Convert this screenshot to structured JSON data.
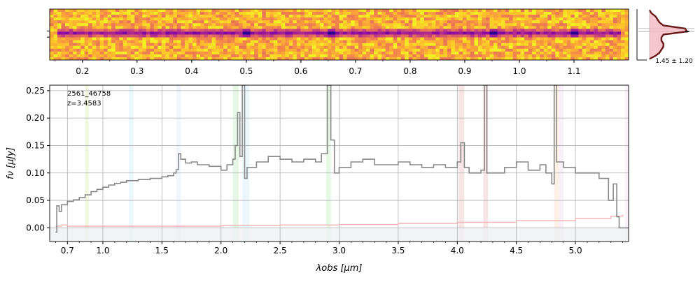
{
  "chart_data": [
    {
      "panel": "2d-spectrum",
      "type": "heatmap",
      "colormap": "plasma",
      "description_free": true,
      "trace_row_fraction": 0.45,
      "emission_knots_wavelength_um": [
        0.5,
        0.654,
        0.95,
        1.1
      ],
      "top_ticks": [
        "0.2",
        "0.3",
        "0.4",
        "0.5",
        "0.6",
        "0.7",
        "0.8",
        "0.9",
        "1.0",
        "1.1"
      ],
      "top_tick_values": [
        0.2,
        0.3,
        0.4,
        0.5,
        0.6,
        0.7,
        0.8,
        0.9,
        1.0,
        1.1
      ]
    },
    {
      "panel": "profile",
      "type": "line",
      "label": "1.45 ± 1.20",
      "profile": [
        {
          "y": -4.0,
          "v": 0.0
        },
        {
          "y": -3.5,
          "v": 0.15
        },
        {
          "y": -3.0,
          "v": 0.25
        },
        {
          "y": -2.5,
          "v": 0.3
        },
        {
          "y": -2.0,
          "v": 0.35
        },
        {
          "y": -1.5,
          "v": 0.35
        },
        {
          "y": -1.0,
          "v": 0.3
        },
        {
          "y": -0.5,
          "v": 0.3
        },
        {
          "y": 0.0,
          "v": 0.35
        },
        {
          "y": 0.5,
          "v": 0.95
        },
        {
          "y": 1.0,
          "v": 0.9
        },
        {
          "y": 1.5,
          "v": 0.35
        },
        {
          "y": 2.0,
          "v": 0.25
        },
        {
          "y": 2.5,
          "v": 0.2
        },
        {
          "y": 3.0,
          "v": 0.15
        },
        {
          "y": 3.5,
          "v": 0.05
        },
        {
          "y": 4.0,
          "v": 0.0
        }
      ]
    },
    {
      "panel": "1d-spectrum",
      "type": "line",
      "id_label": "2561_46758",
      "z_label": "z=3.4583",
      "xlabel": "λobs [μm]",
      "ylabel": "fν [μJy]",
      "xlim": [
        0.55,
        5.45
      ],
      "ylim": [
        -0.025,
        0.26
      ],
      "xticks": [
        {
          "v": 0.7,
          "label": "0.7"
        },
        {
          "v": 1.0,
          "label": "1.0"
        },
        {
          "v": 1.5,
          "label": "1.5"
        },
        {
          "v": 2.0,
          "label": "2.0"
        },
        {
          "v": 2.5,
          "label": "2.5"
        },
        {
          "v": 3.0,
          "label": "3.0"
        },
        {
          "v": 3.5,
          "label": "3.5"
        },
        {
          "v": 4.0,
          "label": "4.0"
        },
        {
          "v": 4.5,
          "label": "4.5"
        },
        {
          "v": 5.0,
          "label": "5.0"
        }
      ],
      "yticks": [
        {
          "v": 0.0,
          "label": "0.00"
        },
        {
          "v": 0.05,
          "label": "0.05"
        },
        {
          "v": 0.1,
          "label": "0.10"
        },
        {
          "v": 0.15,
          "label": "0.15"
        },
        {
          "v": 0.2,
          "label": "0.20"
        },
        {
          "v": 0.25,
          "label": "0.25"
        }
      ],
      "flux": [
        {
          "x": 0.6,
          "y": -0.008
        },
        {
          "x": 0.61,
          "y": 0.04
        },
        {
          "x": 0.63,
          "y": 0.03
        },
        {
          "x": 0.65,
          "y": 0.042
        },
        {
          "x": 0.7,
          "y": 0.048
        },
        {
          "x": 0.75,
          "y": 0.051
        },
        {
          "x": 0.8,
          "y": 0.055
        },
        {
          "x": 0.85,
          "y": 0.06
        },
        {
          "x": 0.9,
          "y": 0.066
        },
        {
          "x": 0.95,
          "y": 0.07
        },
        {
          "x": 1.0,
          "y": 0.074
        },
        {
          "x": 1.05,
          "y": 0.078
        },
        {
          "x": 1.1,
          "y": 0.081
        },
        {
          "x": 1.15,
          "y": 0.083
        },
        {
          "x": 1.2,
          "y": 0.086
        },
        {
          "x": 1.3,
          "y": 0.088
        },
        {
          "x": 1.4,
          "y": 0.09
        },
        {
          "x": 1.5,
          "y": 0.093
        },
        {
          "x": 1.55,
          "y": 0.095
        },
        {
          "x": 1.6,
          "y": 0.1
        },
        {
          "x": 1.62,
          "y": 0.106
        },
        {
          "x": 1.64,
          "y": 0.135
        },
        {
          "x": 1.66,
          "y": 0.125
        },
        {
          "x": 1.7,
          "y": 0.118
        },
        {
          "x": 1.75,
          "y": 0.12
        },
        {
          "x": 1.8,
          "y": 0.115
        },
        {
          "x": 1.9,
          "y": 0.112
        },
        {
          "x": 2.0,
          "y": 0.105
        },
        {
          "x": 2.05,
          "y": 0.115
        },
        {
          "x": 2.1,
          "y": 0.125
        },
        {
          "x": 2.12,
          "y": 0.15
        },
        {
          "x": 2.14,
          "y": 0.21
        },
        {
          "x": 2.16,
          "y": 0.13
        },
        {
          "x": 2.18,
          "y": 0.26
        },
        {
          "x": 2.2,
          "y": 0.09
        },
        {
          "x": 2.22,
          "y": 0.11
        },
        {
          "x": 2.3,
          "y": 0.12
        },
        {
          "x": 2.4,
          "y": 0.13
        },
        {
          "x": 2.5,
          "y": 0.125
        },
        {
          "x": 2.6,
          "y": 0.12
        },
        {
          "x": 2.7,
          "y": 0.125
        },
        {
          "x": 2.8,
          "y": 0.12
        },
        {
          "x": 2.85,
          "y": 0.135
        },
        {
          "x": 2.9,
          "y": 0.26
        },
        {
          "x": 2.93,
          "y": 0.16
        },
        {
          "x": 2.96,
          "y": 0.1
        },
        {
          "x": 3.0,
          "y": 0.11
        },
        {
          "x": 3.1,
          "y": 0.12
        },
        {
          "x": 3.2,
          "y": 0.125
        },
        {
          "x": 3.3,
          "y": 0.115
        },
        {
          "x": 3.4,
          "y": 0.115
        },
        {
          "x": 3.5,
          "y": 0.12
        },
        {
          "x": 3.6,
          "y": 0.115
        },
        {
          "x": 3.7,
          "y": 0.11
        },
        {
          "x": 3.8,
          "y": 0.115
        },
        {
          "x": 3.9,
          "y": 0.11
        },
        {
          "x": 4.0,
          "y": 0.12
        },
        {
          "x": 4.03,
          "y": 0.155
        },
        {
          "x": 4.06,
          "y": 0.11
        },
        {
          "x": 4.1,
          "y": 0.1
        },
        {
          "x": 4.2,
          "y": 0.105
        },
        {
          "x": 4.23,
          "y": 0.26
        },
        {
          "x": 4.25,
          "y": 0.1
        },
        {
          "x": 4.3,
          "y": 0.1
        },
        {
          "x": 4.4,
          "y": 0.11
        },
        {
          "x": 4.5,
          "y": 0.12
        },
        {
          "x": 4.6,
          "y": 0.105
        },
        {
          "x": 4.7,
          "y": 0.115
        },
        {
          "x": 4.75,
          "y": 0.1
        },
        {
          "x": 4.8,
          "y": 0.08
        },
        {
          "x": 4.82,
          "y": 0.26
        },
        {
          "x": 4.84,
          "y": 0.12
        },
        {
          "x": 4.9,
          "y": 0.11
        },
        {
          "x": 5.0,
          "y": 0.1
        },
        {
          "x": 5.1,
          "y": 0.1
        },
        {
          "x": 5.2,
          "y": 0.09
        },
        {
          "x": 5.28,
          "y": 0.05
        },
        {
          "x": 5.32,
          "y": 0.08
        },
        {
          "x": 5.35,
          "y": 0.02
        },
        {
          "x": 5.37,
          "y": 0.0
        },
        {
          "x": 5.45,
          "y": 0.0
        }
      ],
      "error": [
        {
          "x": 0.6,
          "y": 0.003
        },
        {
          "x": 0.65,
          "y": 0.005
        },
        {
          "x": 0.7,
          "y": 0.003
        },
        {
          "x": 1.0,
          "y": 0.003
        },
        {
          "x": 1.5,
          "y": 0.003
        },
        {
          "x": 2.0,
          "y": 0.004
        },
        {
          "x": 2.5,
          "y": 0.005
        },
        {
          "x": 3.0,
          "y": 0.006
        },
        {
          "x": 3.5,
          "y": 0.008
        },
        {
          "x": 4.0,
          "y": 0.01
        },
        {
          "x": 4.5,
          "y": 0.013
        },
        {
          "x": 5.0,
          "y": 0.017
        },
        {
          "x": 5.3,
          "y": 0.021
        },
        {
          "x": 5.4,
          "y": 0.024
        }
      ],
      "line_bands": [
        {
          "x1": 0.85,
          "x2": 0.88,
          "color": "#9acd32"
        },
        {
          "x1": 1.22,
          "x2": 1.26,
          "color": "#87ceeb"
        },
        {
          "x1": 1.62,
          "x2": 1.66,
          "color": "#b0b8ff"
        },
        {
          "x1": 2.1,
          "x2": 2.15,
          "color": "#66cc66"
        },
        {
          "x1": 2.18,
          "x2": 2.24,
          "color": "#87ceeb"
        },
        {
          "x1": 2.89,
          "x2": 2.93,
          "color": "#66cc66"
        },
        {
          "x1": 4.01,
          "x2": 4.06,
          "color": "#cd5c5c"
        },
        {
          "x1": 4.22,
          "x2": 4.26,
          "color": "#cd5c5c"
        },
        {
          "x1": 4.82,
          "x2": 4.86,
          "color": "#f4a460"
        },
        {
          "x1": 4.86,
          "x2": 4.9,
          "color": "#dda0dd"
        },
        {
          "x1": 5.42,
          "x2": 5.45,
          "color": "#dda0dd"
        }
      ],
      "colors": {
        "flux": "#888888",
        "error": "#f4b6b6",
        "grid": "#b0b0b0"
      }
    }
  ]
}
